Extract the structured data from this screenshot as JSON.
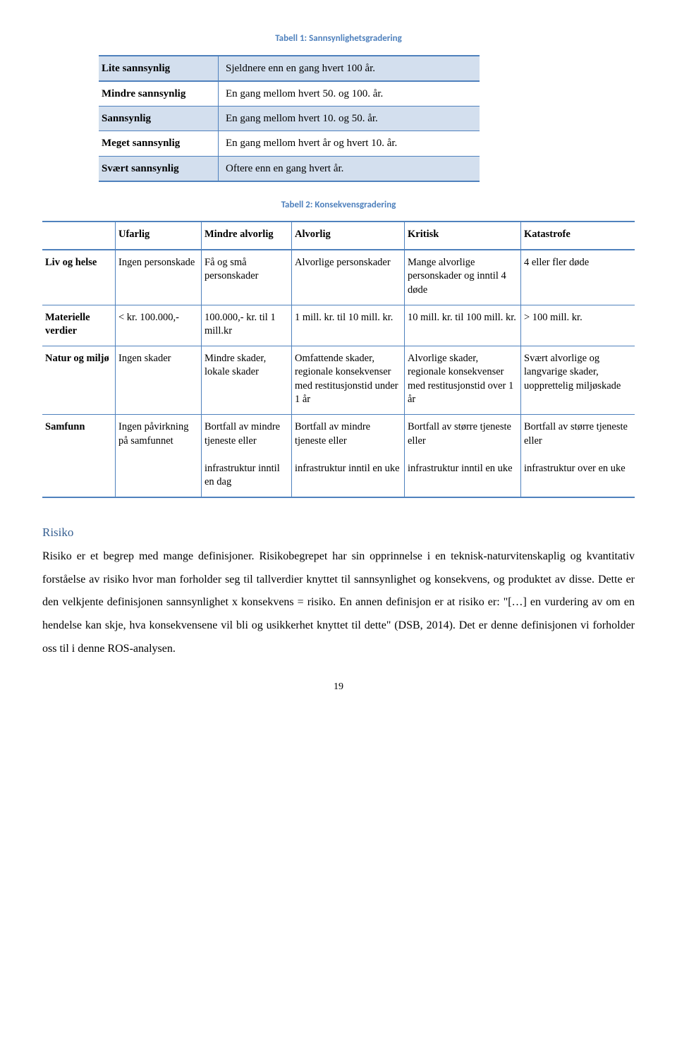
{
  "table1": {
    "caption": "Tabell 1: Sannsynlighetsgradering",
    "rows": [
      {
        "label": "Lite sannsynlig",
        "desc": "Sjeldnere enn en gang hvert 100 år."
      },
      {
        "label": "Mindre sannsynlig",
        "desc": "En gang mellom hvert 50. og 100. år."
      },
      {
        "label": "Sannsynlig",
        "desc": "En gang mellom hvert 10. og 50. år."
      },
      {
        "label": "Meget sannsynlig",
        "desc": "En gang mellom hvert år og hvert 10. år."
      },
      {
        "label": "Svært sannsynlig",
        "desc": "Oftere enn en gang hvert år."
      }
    ]
  },
  "table2": {
    "caption": "Tabell 2: Konsekvensgradering",
    "header": [
      "",
      "Ufarlig",
      "Mindre alvorlig",
      "Alvorlig",
      "Kritisk",
      "Katastrofe"
    ],
    "rows": [
      {
        "label": "Liv og helse",
        "c1": "Ingen personskade",
        "c2": "Få og små personskader",
        "c3": "Alvorlige personskader",
        "c4": "Mange alvorlige personskader og inntil 4 døde",
        "c5": "4 eller fler døde"
      },
      {
        "label": "Materielle verdier",
        "c1": "< kr. 100.000,-",
        "c2": "100.000,- kr. til 1 mill.kr",
        "c3": "1 mill. kr. til 10 mill. kr.",
        "c4": "10 mill. kr. til 100 mill. kr.",
        "c5": "> 100 mill. kr."
      },
      {
        "label": "Natur og miljø",
        "c1": "Ingen skader",
        "c2": "Mindre skader, lokale skader",
        "c3": "Omfattende skader, regionale konsekvenser med restitusjonstid under 1 år",
        "c4": "Alvorlige skader, regionale konsekvenser med restitusjonstid over 1 år",
        "c5": "Svært alvorlige og langvarige skader, uopprettelig miljøskade"
      },
      {
        "label": "Samfunn",
        "c1": "Ingen påvirkning på samfunnet",
        "c2": "Bortfall av mindre tjeneste eller\n\ninfrastruktur inntil en dag",
        "c3": "Bortfall av mindre tjeneste eller\n\ninfrastruktur inntil en uke",
        "c4": "Bortfall av større tjeneste eller\n\ninfrastruktur inntil en uke",
        "c5": "Bortfall av større tjeneste eller\n\ninfrastruktur over en uke"
      }
    ]
  },
  "risk": {
    "heading": "Risiko",
    "paragraph": "Risiko er et begrep med mange definisjoner. Risikobegrepet har sin opprinnelse i en teknisk-naturvitenskaplig og kvantitativ forståelse av risiko hvor man forholder seg til tallverdier knyttet til sannsynlighet og konsekvens, og produktet av disse. Dette er den velkjente definisjonen sannsynlighet x konsekvens = risiko. En annen definisjon er at risiko er: \"[…] en vurdering av om en hendelse kan skje, hva konsekvensene vil bli og usikkerhet knyttet til dette\" (DSB, 2014). Det er denne definisjonen vi forholder oss til i denne ROS-analysen."
  },
  "page_number": "19"
}
